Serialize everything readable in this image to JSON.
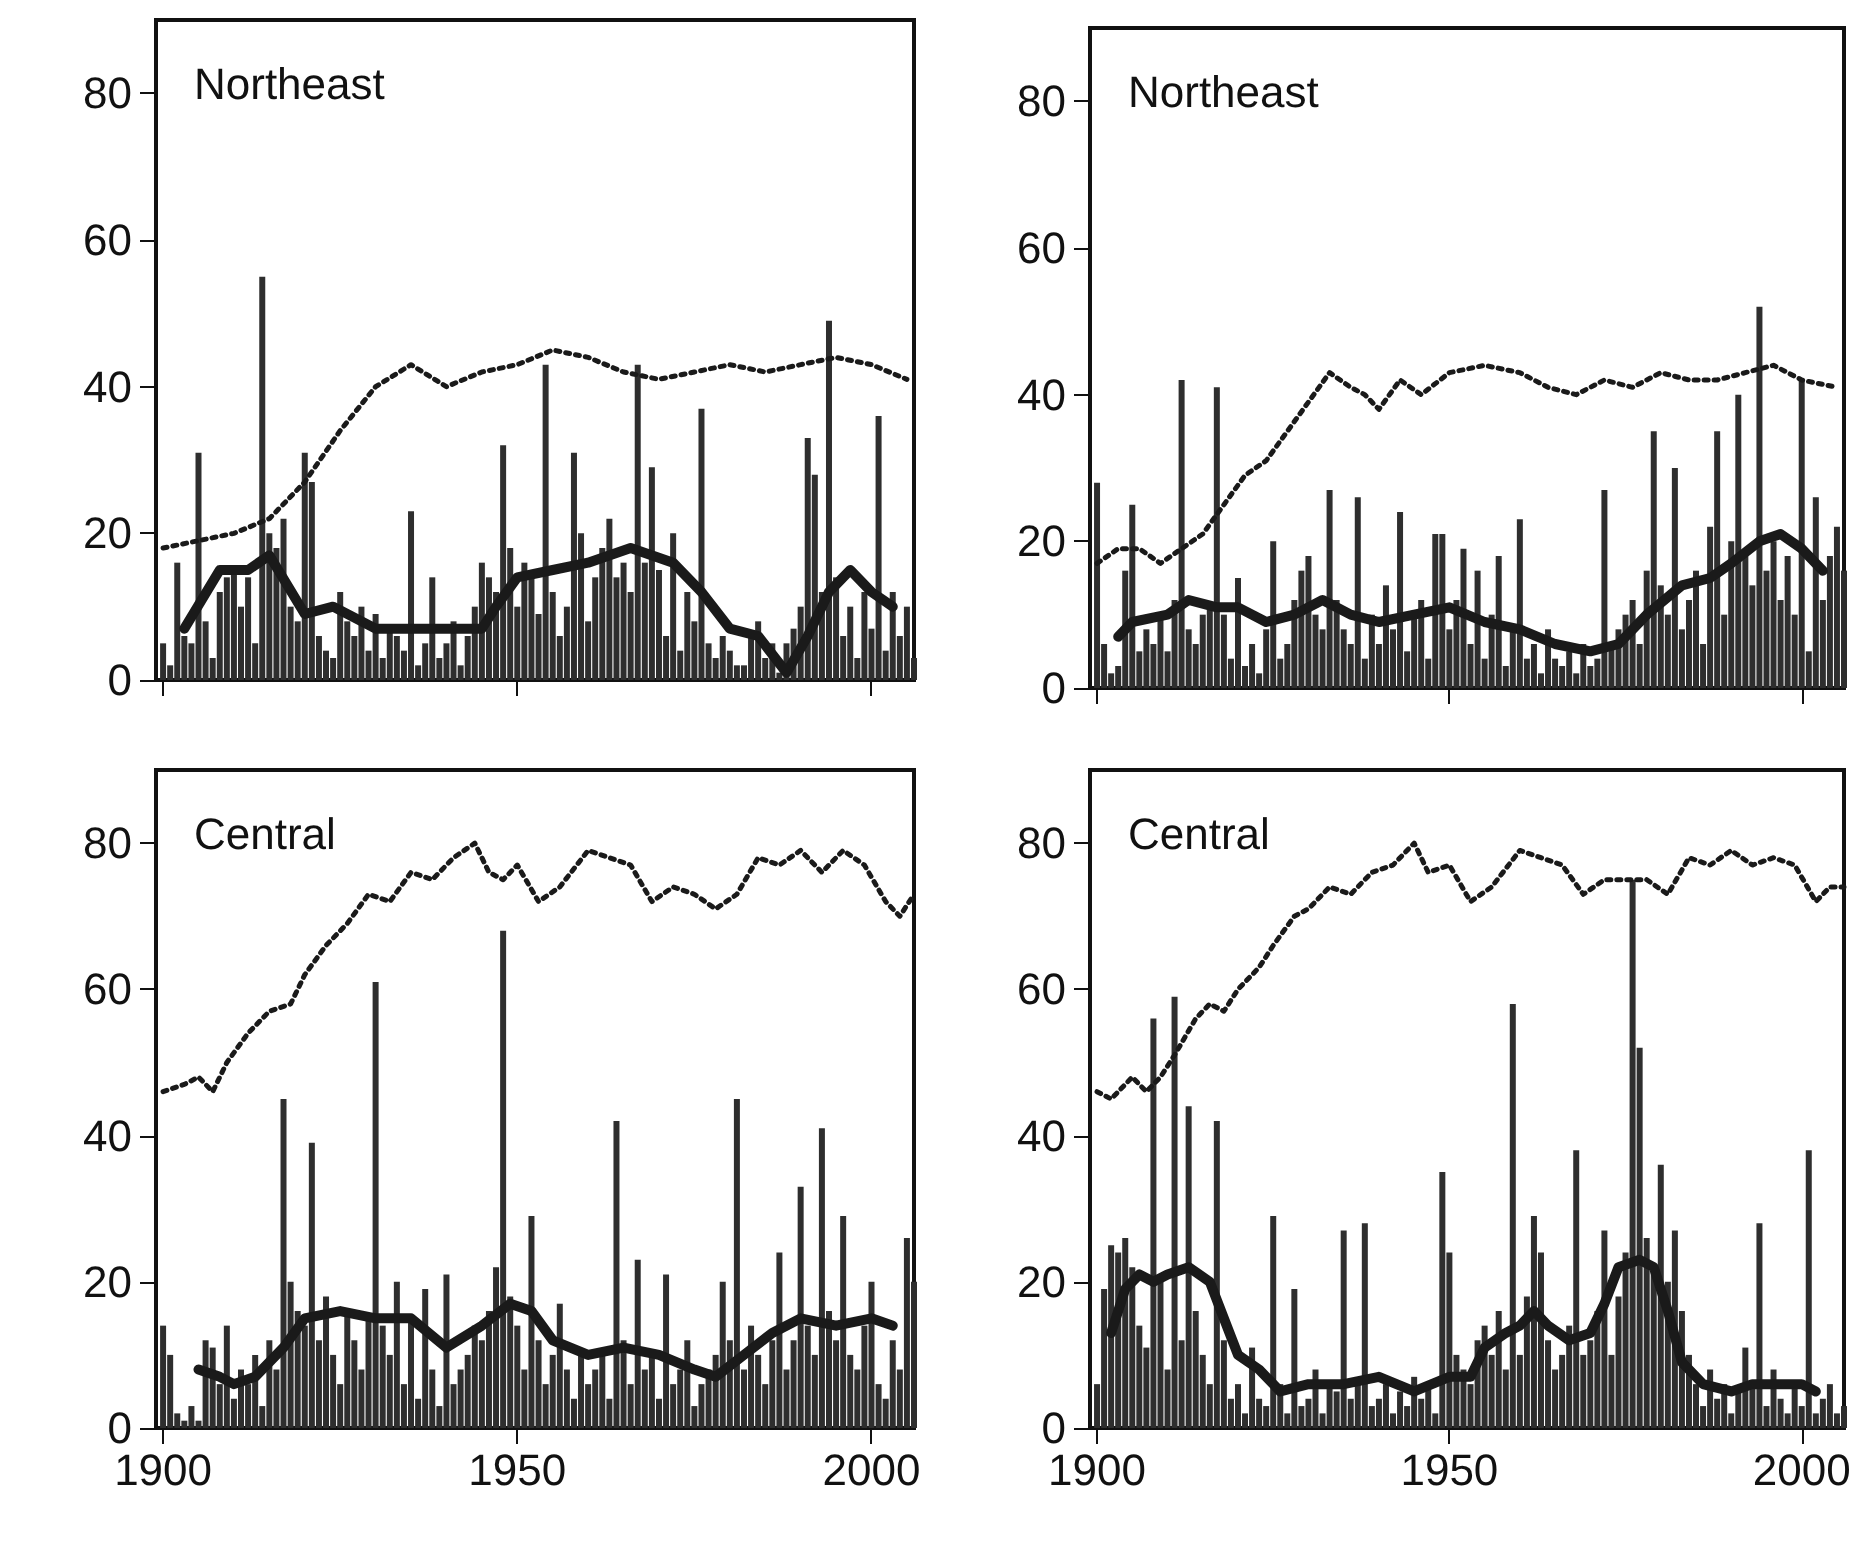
{
  "chart_data": [
    {
      "type": "bar",
      "title": "Northeast",
      "xlim": [
        1899,
        2006
      ],
      "xticks": [
        1900,
        1950,
        2000
      ],
      "ylim": [
        0,
        90
      ],
      "yticks": [
        0,
        20,
        40,
        60,
        80
      ],
      "tick_labels": "y",
      "series": [
        {
          "color": "#2e2e2e",
          "x": [
            1900,
            1901,
            1902,
            1903,
            1904,
            1905,
            1906,
            1907,
            1908,
            1909,
            1910,
            1911,
            1912,
            1913,
            1914,
            1915,
            1916,
            1917,
            1918,
            1919,
            1920,
            1921,
            1922,
            1923,
            1924,
            1925,
            1926,
            1927,
            1928,
            1929,
            1930,
            1931,
            1932,
            1933,
            1934,
            1935,
            1936,
            1937,
            1938,
            1939,
            1940,
            1941,
            1942,
            1943,
            1944,
            1945,
            1946,
            1947,
            1948,
            1949,
            1950,
            1951,
            1952,
            1953,
            1954,
            1955,
            1956,
            1957,
            1958,
            1959,
            1960,
            1961,
            1962,
            1963,
            1964,
            1965,
            1966,
            1967,
            1968,
            1969,
            1970,
            1971,
            1972,
            1973,
            1974,
            1975,
            1976,
            1977,
            1978,
            1979,
            1980,
            1981,
            1982,
            1983,
            1984,
            1985,
            1986,
            1987,
            1988,
            1989,
            1990,
            1991,
            1992,
            1993,
            1994,
            1995,
            1996,
            1997,
            1998,
            1999,
            2000,
            2001,
            2002,
            2003,
            2004,
            2005,
            2006
          ],
          "values": [
            5,
            2,
            16,
            6,
            5,
            31,
            8,
            3,
            12,
            14,
            15,
            10,
            14,
            5,
            55,
            20,
            18,
            22,
            10,
            8,
            31,
            27,
            6,
            4,
            3,
            12,
            8,
            6,
            10,
            4,
            9,
            3,
            7,
            6,
            4,
            23,
            2,
            5,
            14,
            3,
            5,
            8,
            2,
            6,
            10,
            16,
            14,
            12,
            32,
            18,
            10,
            16,
            14,
            9,
            43,
            12,
            6,
            10,
            31,
            20,
            8,
            14,
            18,
            22,
            14,
            16,
            12,
            43,
            16,
            29,
            15,
            6,
            20,
            4,
            12,
            8,
            37,
            5,
            3,
            6,
            4,
            2,
            2,
            6,
            8,
            3,
            5,
            1,
            5,
            7,
            10,
            33,
            28,
            12,
            49,
            14,
            6,
            10,
            3,
            12,
            7,
            36,
            4,
            12,
            6,
            10,
            3
          ]
        },
        {
          "type": "line",
          "color": "#1a1a1a",
          "line_style": "solid",
          "x": [
            1903,
            1908,
            1912,
            1915,
            1920,
            1924,
            1930,
            1935,
            1940,
            1945,
            1947,
            1950,
            1955,
            1960,
            1966,
            1972,
            1976,
            1980,
            1984,
            1988,
            1991,
            1994,
            1997,
            2000,
            2003
          ],
          "values": [
            7,
            15,
            15,
            17,
            9,
            10,
            7,
            7,
            7,
            7,
            10,
            14,
            15,
            16,
            18,
            16,
            12,
            7,
            6,
            1,
            6,
            12,
            15,
            12,
            10
          ]
        },
        {
          "type": "line",
          "color": "#1a1a1a",
          "line_style": "dotted",
          "x": [
            1900,
            1905,
            1910,
            1915,
            1920,
            1925,
            1930,
            1935,
            1940,
            1945,
            1950,
            1955,
            1960,
            1965,
            1970,
            1975,
            1980,
            1985,
            1990,
            1995,
            2000,
            2005
          ],
          "values": [
            18,
            19,
            20,
            22,
            27,
            34,
            40,
            43,
            40,
            42,
            43,
            45,
            44,
            42,
            41,
            42,
            43,
            42,
            43,
            44,
            43,
            41
          ]
        }
      ]
    },
    {
      "type": "bar",
      "title": "Northeast",
      "xlim": [
        1899,
        2006
      ],
      "xticks": [
        1900,
        1950,
        2000
      ],
      "ylim": [
        0,
        90
      ],
      "yticks": [
        0,
        20,
        40,
        60,
        80
      ],
      "tick_labels": "y",
      "series": [
        {
          "color": "#2e2e2e",
          "x": [
            1900,
            1901,
            1902,
            1903,
            1904,
            1905,
            1906,
            1907,
            1908,
            1909,
            1910,
            1911,
            1912,
            1913,
            1914,
            1915,
            1916,
            1917,
            1918,
            1919,
            1920,
            1921,
            1922,
            1923,
            1924,
            1925,
            1926,
            1927,
            1928,
            1929,
            1930,
            1931,
            1932,
            1933,
            1934,
            1935,
            1936,
            1937,
            1938,
            1939,
            1940,
            1941,
            1942,
            1943,
            1944,
            1945,
            1946,
            1947,
            1948,
            1949,
            1950,
            1951,
            1952,
            1953,
            1954,
            1955,
            1956,
            1957,
            1958,
            1959,
            1960,
            1961,
            1962,
            1963,
            1964,
            1965,
            1966,
            1967,
            1968,
            1969,
            1970,
            1971,
            1972,
            1973,
            1974,
            1975,
            1976,
            1977,
            1978,
            1979,
            1980,
            1981,
            1982,
            1983,
            1984,
            1985,
            1986,
            1987,
            1988,
            1989,
            1990,
            1991,
            1992,
            1993,
            1994,
            1995,
            1996,
            1997,
            1998,
            1999,
            2000,
            2001,
            2002,
            2003,
            2004,
            2005,
            2006
          ],
          "values": [
            28,
            6,
            2,
            3,
            16,
            25,
            5,
            8,
            6,
            10,
            5,
            12,
            42,
            8,
            6,
            10,
            11,
            41,
            10,
            4,
            15,
            3,
            6,
            2,
            8,
            20,
            4,
            6,
            12,
            16,
            18,
            10,
            8,
            27,
            12,
            8,
            6,
            26,
            4,
            10,
            6,
            14,
            8,
            24,
            5,
            10,
            12,
            4,
            21,
            21,
            8,
            12,
            19,
            6,
            16,
            4,
            10,
            18,
            3,
            8,
            23,
            4,
            6,
            2,
            8,
            4,
            3,
            5,
            2,
            6,
            3,
            4,
            27,
            6,
            8,
            10,
            12,
            6,
            16,
            35,
            14,
            10,
            30,
            8,
            12,
            16,
            6,
            22,
            35,
            10,
            20,
            40,
            18,
            14,
            52,
            16,
            20,
            12,
            18,
            10,
            42,
            5,
            26,
            12,
            18,
            22,
            16
          ]
        },
        {
          "type": "line",
          "color": "#1a1a1a",
          "line_style": "solid",
          "x": [
            1903,
            1905,
            1910,
            1913,
            1917,
            1920,
            1924,
            1928,
            1932,
            1936,
            1940,
            1945,
            1950,
            1955,
            1960,
            1965,
            1970,
            1974,
            1978,
            1983,
            1987,
            1990,
            1994,
            1997,
            2000,
            2003
          ],
          "values": [
            7,
            9,
            10,
            12,
            11,
            11,
            9,
            10,
            12,
            10,
            9,
            10,
            11,
            9,
            8,
            6,
            5,
            6,
            10,
            14,
            15,
            17,
            20,
            21,
            19,
            16
          ]
        },
        {
          "type": "line",
          "color": "#1a1a1a",
          "line_style": "dotted",
          "x": [
            1900,
            1903,
            1906,
            1909,
            1912,
            1915,
            1918,
            1921,
            1924,
            1927,
            1930,
            1933,
            1936,
            1938,
            1940,
            1943,
            1946,
            1950,
            1955,
            1960,
            1964,
            1968,
            1972,
            1976,
            1980,
            1984,
            1988,
            1992,
            1996,
            2000,
            2005
          ],
          "values": [
            17,
            19,
            19,
            17,
            19,
            21,
            25,
            29,
            31,
            35,
            39,
            43,
            41,
            40,
            38,
            42,
            40,
            43,
            44,
            43,
            41,
            40,
            42,
            41,
            43,
            42,
            42,
            43,
            44,
            42,
            41
          ]
        }
      ]
    },
    {
      "type": "bar",
      "title": "Central",
      "xlim": [
        1899,
        2006
      ],
      "xticks": [
        1900,
        1950,
        2000
      ],
      "ylim": [
        0,
        90
      ],
      "yticks": [
        0,
        20,
        40,
        60,
        80
      ],
      "series": [
        {
          "color": "#2e2e2e",
          "x": [
            1900,
            1901,
            1902,
            1903,
            1904,
            1905,
            1906,
            1907,
            1908,
            1909,
            1910,
            1911,
            1912,
            1913,
            1914,
            1915,
            1916,
            1917,
            1918,
            1919,
            1920,
            1921,
            1922,
            1923,
            1924,
            1925,
            1926,
            1927,
            1928,
            1929,
            1930,
            1931,
            1932,
            1933,
            1934,
            1935,
            1936,
            1937,
            1938,
            1939,
            1940,
            1941,
            1942,
            1943,
            1944,
            1945,
            1946,
            1947,
            1948,
            1949,
            1950,
            1951,
            1952,
            1953,
            1954,
            1955,
            1956,
            1957,
            1958,
            1959,
            1960,
            1961,
            1962,
            1963,
            1964,
            1965,
            1966,
            1967,
            1968,
            1969,
            1970,
            1971,
            1972,
            1973,
            1974,
            1975,
            1976,
            1977,
            1978,
            1979,
            1980,
            1981,
            1982,
            1983,
            1984,
            1985,
            1986,
            1987,
            1988,
            1989,
            1990,
            1991,
            1992,
            1993,
            1994,
            1995,
            1996,
            1997,
            1998,
            1999,
            2000,
            2001,
            2002,
            2003,
            2004,
            2005,
            2006
          ],
          "values": [
            14,
            10,
            2,
            1,
            3,
            1,
            12,
            11,
            6,
            14,
            4,
            8,
            6,
            10,
            3,
            12,
            8,
            45,
            20,
            16,
            14,
            39,
            12,
            18,
            10,
            6,
            16,
            12,
            8,
            15,
            61,
            14,
            10,
            20,
            6,
            15,
            4,
            19,
            8,
            3,
            21,
            6,
            8,
            10,
            14,
            12,
            16,
            22,
            68,
            18,
            14,
            8,
            29,
            12,
            6,
            10,
            17,
            8,
            4,
            10,
            6,
            8,
            10,
            4,
            42,
            12,
            6,
            23,
            8,
            10,
            4,
            21,
            6,
            8,
            12,
            3,
            6,
            8,
            10,
            20,
            12,
            45,
            8,
            14,
            10,
            6,
            12,
            24,
            8,
            12,
            33,
            14,
            10,
            41,
            16,
            12,
            29,
            10,
            8,
            14,
            20,
            6,
            4,
            12,
            8,
            26,
            20
          ]
        },
        {
          "type": "line",
          "color": "#1a1a1a",
          "line_style": "solid",
          "x": [
            1905,
            1908,
            1910,
            1913,
            1917,
            1920,
            1925,
            1930,
            1935,
            1940,
            1945,
            1949,
            1952,
            1955,
            1960,
            1965,
            1970,
            1975,
            1978,
            1982,
            1986,
            1990,
            1995,
            2000,
            2003
          ],
          "values": [
            8,
            7,
            6,
            7,
            11,
            15,
            16,
            15,
            15,
            11,
            14,
            17,
            16,
            12,
            10,
            11,
            10,
            8,
            7,
            10,
            13,
            15,
            14,
            15,
            14
          ]
        },
        {
          "type": "line",
          "color": "#1a1a1a",
          "line_style": "dotted",
          "x": [
            1900,
            1903,
            1905,
            1907,
            1909,
            1912,
            1915,
            1918,
            1920,
            1923,
            1926,
            1929,
            1932,
            1935,
            1938,
            1941,
            1944,
            1946,
            1948,
            1950,
            1953,
            1956,
            1960,
            1963,
            1966,
            1969,
            1972,
            1975,
            1978,
            1981,
            1984,
            1987,
            1990,
            1993,
            1996,
            1999,
            2002,
            2004,
            2006
          ],
          "values": [
            46,
            47,
            48,
            46,
            50,
            54,
            57,
            58,
            62,
            66,
            69,
            73,
            72,
            76,
            75,
            78,
            80,
            76,
            75,
            77,
            72,
            74,
            79,
            78,
            77,
            72,
            74,
            73,
            71,
            73,
            78,
            77,
            79,
            76,
            79,
            77,
            72,
            70,
            73
          ]
        }
      ]
    },
    {
      "type": "bar",
      "title": "Central",
      "xlim": [
        1899,
        2006
      ],
      "xticks": [
        1900,
        1950,
        2000
      ],
      "ylim": [
        0,
        90
      ],
      "yticks": [
        0,
        20,
        40,
        60,
        80
      ],
      "series": [
        {
          "color": "#2e2e2e",
          "x": [
            1900,
            1901,
            1902,
            1903,
            1904,
            1905,
            1906,
            1907,
            1908,
            1909,
            1910,
            1911,
            1912,
            1913,
            1914,
            1915,
            1916,
            1917,
            1918,
            1919,
            1920,
            1921,
            1922,
            1923,
            1924,
            1925,
            1926,
            1927,
            1928,
            1929,
            1930,
            1931,
            1932,
            1933,
            1934,
            1935,
            1936,
            1937,
            1938,
            1939,
            1940,
            1941,
            1942,
            1943,
            1944,
            1945,
            1946,
            1947,
            1948,
            1949,
            1950,
            1951,
            1952,
            1953,
            1954,
            1955,
            1956,
            1957,
            1958,
            1959,
            1960,
            1961,
            1962,
            1963,
            1964,
            1965,
            1966,
            1967,
            1968,
            1969,
            1970,
            1971,
            1972,
            1973,
            1974,
            1975,
            1976,
            1977,
            1978,
            1979,
            1980,
            1981,
            1982,
            1983,
            1984,
            1985,
            1986,
            1987,
            1988,
            1989,
            1990,
            1991,
            1992,
            1993,
            1994,
            1995,
            1996,
            1997,
            1998,
            1999,
            2000,
            2001,
            2002,
            2003,
            2004,
            2005,
            2006
          ],
          "values": [
            6,
            19,
            25,
            24,
            26,
            22,
            14,
            11,
            56,
            20,
            8,
            59,
            12,
            44,
            16,
            10,
            6,
            42,
            12,
            4,
            6,
            2,
            11,
            4,
            3,
            29,
            6,
            2,
            19,
            3,
            4,
            8,
            2,
            6,
            5,
            27,
            4,
            6,
            28,
            3,
            4,
            6,
            2,
            5,
            3,
            7,
            4,
            6,
            2,
            35,
            24,
            10,
            8,
            6,
            12,
            14,
            10,
            16,
            8,
            58,
            10,
            18,
            29,
            24,
            12,
            8,
            10,
            14,
            38,
            10,
            12,
            16,
            27,
            10,
            18,
            24,
            75,
            52,
            26,
            22,
            36,
            20,
            27,
            16,
            10,
            6,
            3,
            8,
            4,
            6,
            2,
            5,
            11,
            6,
            28,
            3,
            8,
            4,
            2,
            6,
            3,
            38,
            2,
            4,
            6,
            2,
            3
          ]
        },
        {
          "type": "line",
          "color": "#1a1a1a",
          "line_style": "solid",
          "x": [
            1902,
            1904,
            1906,
            1908,
            1910,
            1913,
            1916,
            1918,
            1920,
            1923,
            1926,
            1930,
            1935,
            1940,
            1945,
            1950,
            1953,
            1955,
            1958,
            1960,
            1962,
            1964,
            1967,
            1970,
            1972,
            1974,
            1977,
            1979,
            1981,
            1983,
            1986,
            1990,
            1993,
            1996,
            2000,
            2002
          ],
          "values": [
            13,
            19,
            21,
            20,
            21,
            22,
            20,
            15,
            10,
            8,
            5,
            6,
            6,
            7,
            5,
            7,
            7,
            11,
            13,
            14,
            16,
            14,
            12,
            13,
            17,
            22,
            23,
            22,
            16,
            9,
            6,
            5,
            6,
            6,
            6,
            5
          ]
        },
        {
          "type": "line",
          "color": "#1a1a1a",
          "line_style": "dotted",
          "x": [
            1900,
            1902,
            1905,
            1907,
            1909,
            1911,
            1914,
            1916,
            1918,
            1920,
            1923,
            1925,
            1928,
            1930,
            1933,
            1936,
            1939,
            1942,
            1945,
            1947,
            1950,
            1953,
            1956,
            1960,
            1963,
            1966,
            1969,
            1972,
            1975,
            1978,
            1981,
            1984,
            1987,
            1990,
            1993,
            1996,
            1999,
            2002,
            2004,
            2006
          ],
          "values": [
            46,
            45,
            48,
            46,
            48,
            51,
            56,
            58,
            57,
            60,
            63,
            66,
            70,
            71,
            74,
            73,
            76,
            77,
            80,
            76,
            77,
            72,
            74,
            79,
            78,
            77,
            73,
            75,
            75,
            75,
            73,
            78,
            77,
            79,
            77,
            78,
            77,
            72,
            74,
            74
          ]
        }
      ]
    }
  ]
}
